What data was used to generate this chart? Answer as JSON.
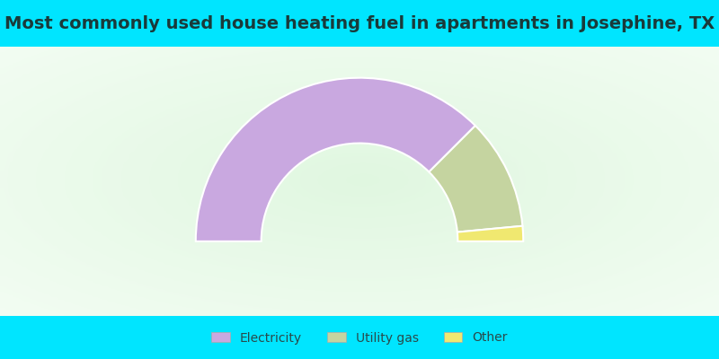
{
  "title": "Most commonly used house heating fuel in apartments in Josephine, TX",
  "segments": [
    {
      "label": "Electricity",
      "value": 75,
      "color": "#c9a8e0"
    },
    {
      "label": "Utility gas",
      "value": 22,
      "color": "#c5d4a0"
    },
    {
      "label": "Other",
      "value": 3,
      "color": "#f0e870"
    }
  ],
  "title_bg_color": "#00e5ff",
  "title_fontsize": 14,
  "title_color": "#1a3a3a",
  "legend_fontsize": 10,
  "legend_text_color": "#2a4a4a"
}
